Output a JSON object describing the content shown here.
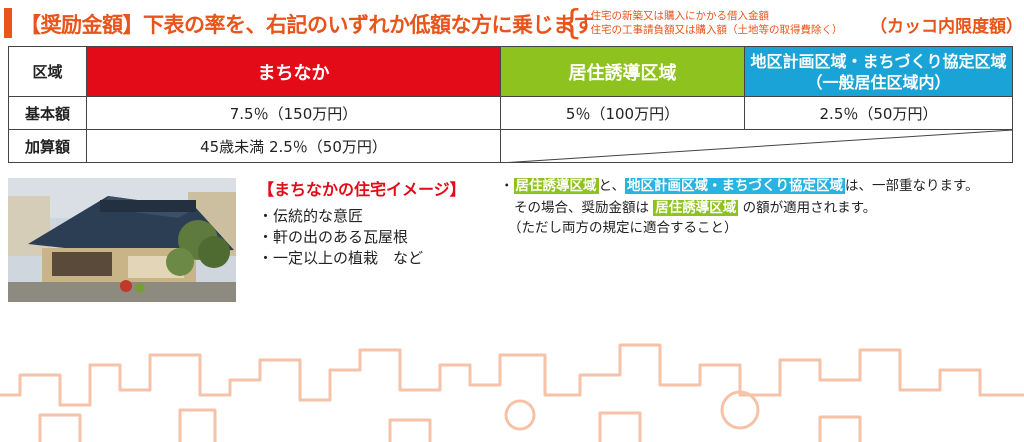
{
  "header": {
    "title": "【奨励金額】下表の率を、右記のいずれか低額な方に乗じます",
    "brace": "{",
    "notes": [
      "・住宅の新築又は購入にかかる借入金額",
      "・住宅の工事請負額又は購入額（土地等の取得費除く）"
    ],
    "limit": "（カッコ内限度額）"
  },
  "table": {
    "corner": "区域",
    "columns": {
      "machinaka": "まちなか",
      "kyoju": "居住誘導区域",
      "chiku_line1": "地区計画区域・まちづくり協定区域",
      "chiku_line2": "（一般居住区域内）"
    },
    "rows": {
      "base": {
        "label": "基本額",
        "machinaka": "7.5％（150万円）",
        "kyoju": "5％（100万円）",
        "chiku": "2.5％（50万円）"
      },
      "add": {
        "label": "加算額",
        "machinaka": "45歳未満 2.5％（50万円）"
      }
    }
  },
  "image_section": {
    "title": "【まちなかの住宅イメージ】",
    "features": [
      "・伝統的な意匠",
      "・軒の出のある瓦屋根",
      "・一定以上の植栽　など"
    ]
  },
  "note": {
    "bullet": "・",
    "hl_kyoju": "居住誘導区域",
    "to": "と、",
    "hl_chiku": "地区計画区域・まちづくり協定区域",
    "overlap": "は、一部重なります。",
    "line2_pre": "その場合、奨励金額は",
    "line2_post": "の額が適用されます。",
    "line3": "（ただし両方の規定に適合すること）"
  },
  "colors": {
    "accent": "#e8541a",
    "machinaka": "#e30b17",
    "kyoju": "#8dc21f",
    "chiku": "#1aa3d6"
  }
}
